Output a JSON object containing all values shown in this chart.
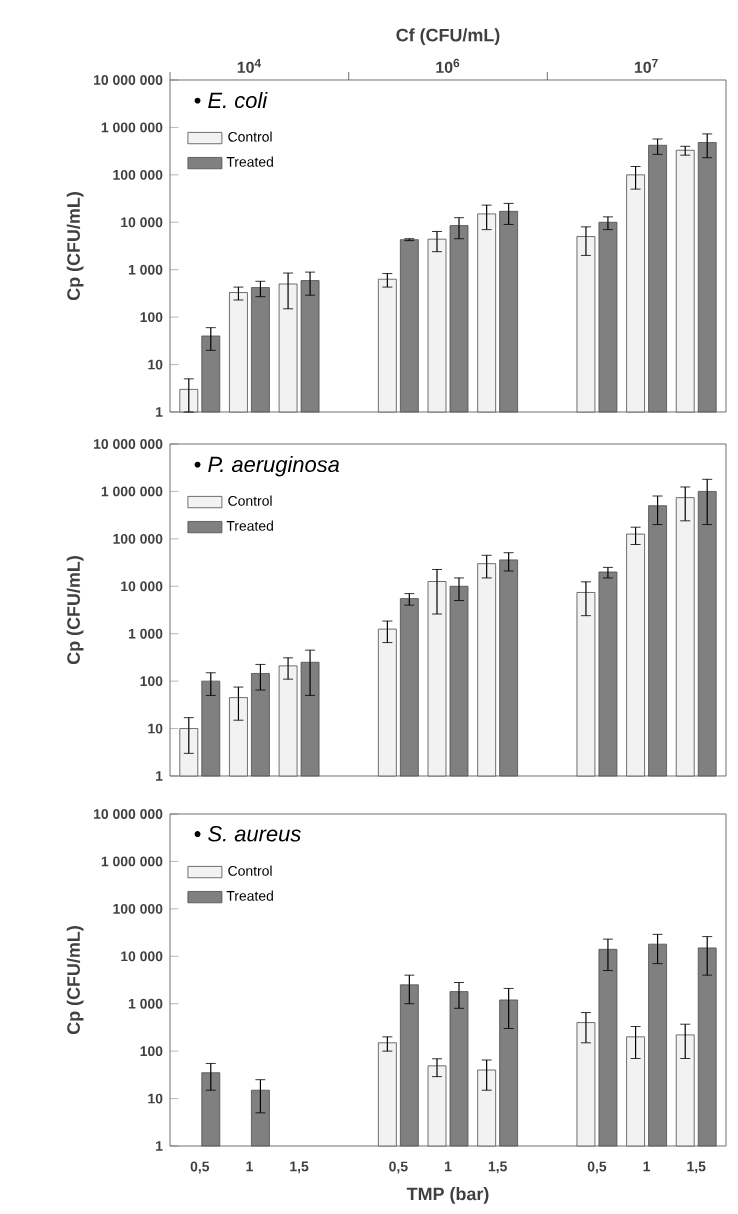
{
  "chart_data": [
    {
      "type": "bar",
      "title": "•  *E. coli*",
      "ylabel": "Cp (CFU/mL)",
      "x2label": "Cf (CFU/mL)",
      "annotations": [
        "10$^{4}$",
        "10$^{6}$",
        "10$^{7}$"
      ],
      "categories": [
        "0,5",
        "1",
        "1,5",
        null,
        "0,5",
        "1",
        "1,5",
        null,
        "0,5",
        "1",
        "1,5"
      ],
      "series": [
        {
          "name": "Control",
          "color": "#f2f2f2",
          "values": [
            3,
            330,
            500,
            null,
            630,
            4400,
            15000,
            null,
            5000,
            100000,
            330000
          ],
          "errors": [
            2,
            100,
            350,
            null,
            200,
            2000,
            8000,
            null,
            3000,
            50000,
            70000
          ]
        },
        {
          "name": "Treated",
          "color": "#808080",
          "values": [
            40,
            420,
            590,
            null,
            4300,
            8500,
            17000,
            null,
            10000,
            420000,
            480000
          ],
          "errors": [
            20,
            150,
            300,
            null,
            200,
            4000,
            8000,
            null,
            3000,
            150000,
            250000
          ]
        }
      ],
      "log": true,
      "ylim": [
        1,
        10000000
      ],
      "yticks": [
        1,
        10,
        100,
        {
          "value": 1000,
          "label": "1 000"
        },
        {
          "value": 10000,
          "label": "10 000"
        },
        {
          "value": 100000,
          "label": "100 000"
        },
        {
          "value": 1000000,
          "label": "1 000 000"
        },
        {
          "value": 10000000,
          "label": "10 000 000"
        }
      ],
      "legend": "top left",
      "tick_labels": "y"
    },
    {
      "type": "bar",
      "title": "•  *P. aeruginosa*",
      "ylabel": "Cp (CFU/mL)",
      "categories": [
        "0,5",
        "1",
        "1,5",
        null,
        "0,5",
        "1",
        "1,5",
        null,
        "0,5",
        "1",
        "1,5"
      ],
      "series": [
        {
          "name": "Control",
          "color": "#f2f2f2",
          "values": [
            10,
            45,
            210,
            null,
            1250,
            12600,
            30000,
            null,
            7400,
            126000,
            740000
          ],
          "errors": [
            7,
            30,
            100,
            null,
            600,
            10000,
            15000,
            null,
            5000,
            50000,
            500000
          ]
        },
        {
          "name": "Treated",
          "color": "#808080",
          "values": [
            100,
            145,
            250,
            null,
            5500,
            10000,
            36000,
            null,
            20000,
            500000,
            1000000
          ],
          "errors": [
            50,
            80,
            200,
            null,
            1500,
            5000,
            15000,
            null,
            5000,
            300000,
            800000
          ]
        }
      ],
      "log": true,
      "ylim": [
        1,
        10000000
      ],
      "yticks": [
        1,
        10,
        100,
        {
          "value": 1000,
          "label": "1 000"
        },
        {
          "value": 10000,
          "label": "10 000"
        },
        {
          "value": 100000,
          "label": "100 000"
        },
        {
          "value": 1000000,
          "label": "1 000 000"
        },
        {
          "value": 10000000,
          "label": "10 000 000"
        }
      ],
      "legend": "top left",
      "tick_labels": "y"
    },
    {
      "type": "bar",
      "title": "•  *S. aureus*",
      "ylabel": "Cp (CFU/mL)",
      "xlabel": "TMP (bar)",
      "categories": [
        "0,5",
        "1",
        "1,5",
        null,
        "0,5",
        "1",
        "1,5",
        null,
        "0,5",
        "1",
        "1,5"
      ],
      "series": [
        {
          "name": "Control",
          "color": "#f2f2f2",
          "values": [
            null,
            null,
            null,
            null,
            150,
            49,
            40,
            null,
            400,
            200,
            220
          ],
          "errors": [
            null,
            null,
            null,
            null,
            50,
            20,
            25,
            null,
            250,
            130,
            150
          ]
        },
        {
          "name": "Treated",
          "color": "#808080",
          "values": [
            35,
            15,
            null,
            null,
            2500,
            1800,
            1200,
            null,
            14000,
            18000,
            15000
          ],
          "errors": [
            20,
            10,
            null,
            null,
            1500,
            1000,
            900,
            null,
            9000,
            11000,
            11000
          ]
        }
      ],
      "log": true,
      "ylim": [
        1,
        10000000
      ],
      "yticks": [
        1,
        10,
        100,
        {
          "value": 1000,
          "label": "1 000"
        },
        {
          "value": 10000,
          "label": "10 000"
        },
        {
          "value": 100000,
          "label": "100 000"
        },
        {
          "value": 1000000,
          "label": "1 000 000"
        },
        {
          "value": 10000000,
          "label": "10 000 000"
        }
      ],
      "legend": "top left"
    }
  ]
}
